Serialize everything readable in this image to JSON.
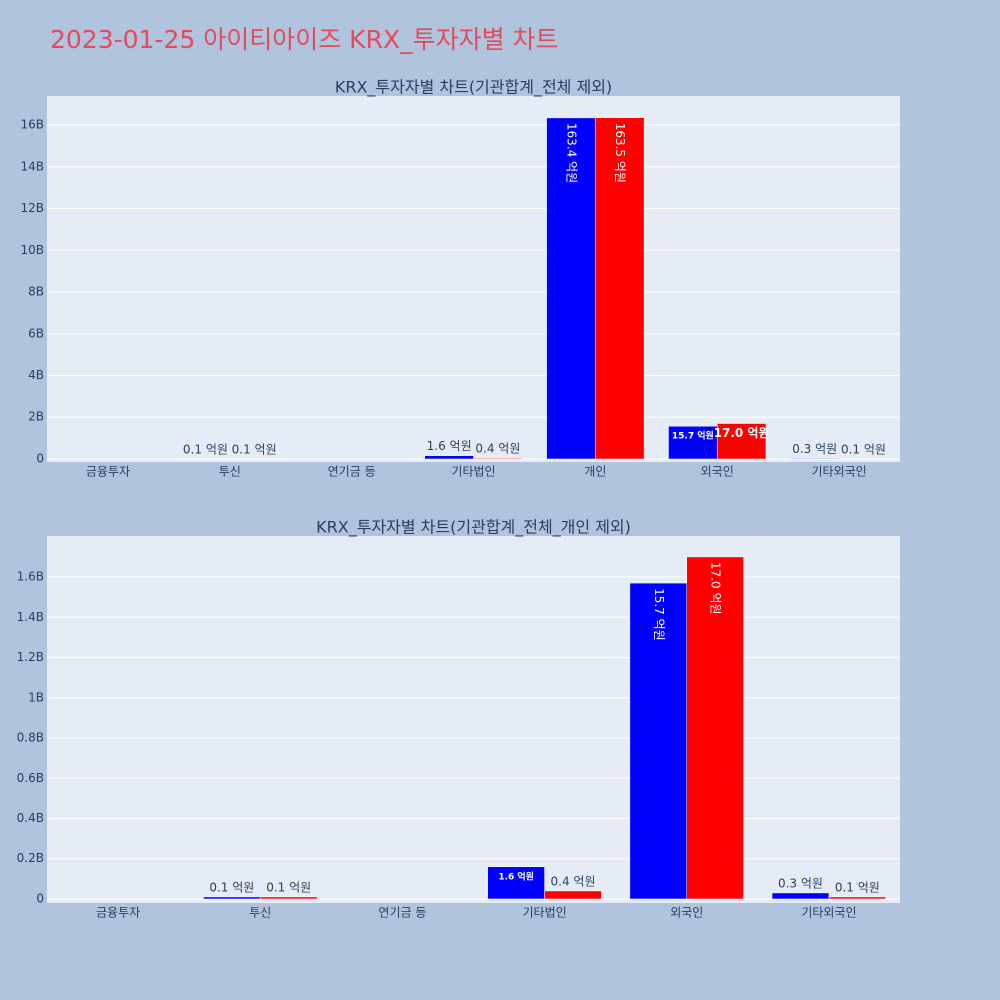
{
  "title": "2023-01-25 아이티아이즈 KRX_투자자별 차트",
  "chart_data": [
    {
      "type": "bar",
      "title": "KRX_투자자별 차트(기관합계_전체 제외)",
      "categories": [
        "금융투자",
        "투신",
        "연기금 등",
        "기타법인",
        "개인",
        "외국인",
        "기타외국인"
      ],
      "series": [
        {
          "color": "#0000ff",
          "values": [
            0,
            10000000,
            0,
            160000000,
            16340000000,
            1570000000,
            30000000
          ],
          "value_labels": [
            null,
            "0.1 억원",
            null,
            "1.6 억원",
            "163.4 억원",
            "15.7 억원",
            "0.3 억원"
          ]
        },
        {
          "color": "#ff0000",
          "values": [
            0,
            10000000,
            0,
            40000000,
            16350000000,
            1700000000,
            10000000
          ],
          "value_labels": [
            null,
            "0.1 억원",
            null,
            "0.4 억원",
            "163.5 억원",
            "17.0 억원",
            "0.1 억원"
          ]
        }
      ],
      "ylim": [
        -144000000,
        17390000000
      ],
      "yticks": [
        0,
        {
          "value": 2000000000,
          "label": "2B"
        },
        {
          "value": 4000000000,
          "label": "4B"
        },
        {
          "value": 6000000000,
          "label": "6B"
        },
        {
          "value": 8000000000,
          "label": "8B"
        },
        {
          "value": 10000000000,
          "label": "10B"
        },
        {
          "value": 12000000000,
          "label": "12B"
        },
        {
          "value": 14000000000,
          "label": "14B"
        },
        {
          "value": 16000000000,
          "label": "16B"
        }
      ],
      "grid": true
    },
    {
      "type": "bar",
      "title": "KRX_투자자별 차트(기관합계_전체_개인 제외)",
      "categories": [
        "금융투자",
        "투신",
        "연기금 등",
        "기타법인",
        "외국인",
        "기타외국인"
      ],
      "series": [
        {
          "color": "#0000ff",
          "values": [
            0,
            10000000,
            0,
            160000000,
            1570000000,
            30000000
          ],
          "value_labels": [
            null,
            "0.1 억원",
            null,
            "1.6 억원",
            "15.7 억원",
            "0.3 억원"
          ]
        },
        {
          "color": "#ff0000",
          "values": [
            0,
            10000000,
            0,
            40000000,
            1700000000,
            10000000
          ],
          "value_labels": [
            null,
            "0.1 억원",
            null,
            "0.4 억원",
            "17.0 억원",
            "0.1 억원"
          ]
        }
      ],
      "ylim": [
        -20000000,
        1804000000
      ],
      "yticks": [
        0,
        {
          "value": 200000000,
          "label": "0.2B"
        },
        {
          "value": 400000000,
          "label": "0.4B"
        },
        {
          "value": 600000000,
          "label": "0.6B"
        },
        {
          "value": 800000000,
          "label": "0.8B"
        },
        {
          "value": 1000000000,
          "label": "1B"
        },
        {
          "value": 1200000000,
          "label": "1.2B"
        },
        {
          "value": 1400000000,
          "label": "1.4B"
        },
        {
          "value": 1600000000,
          "label": "1.6B"
        }
      ],
      "grid": true
    }
  ]
}
